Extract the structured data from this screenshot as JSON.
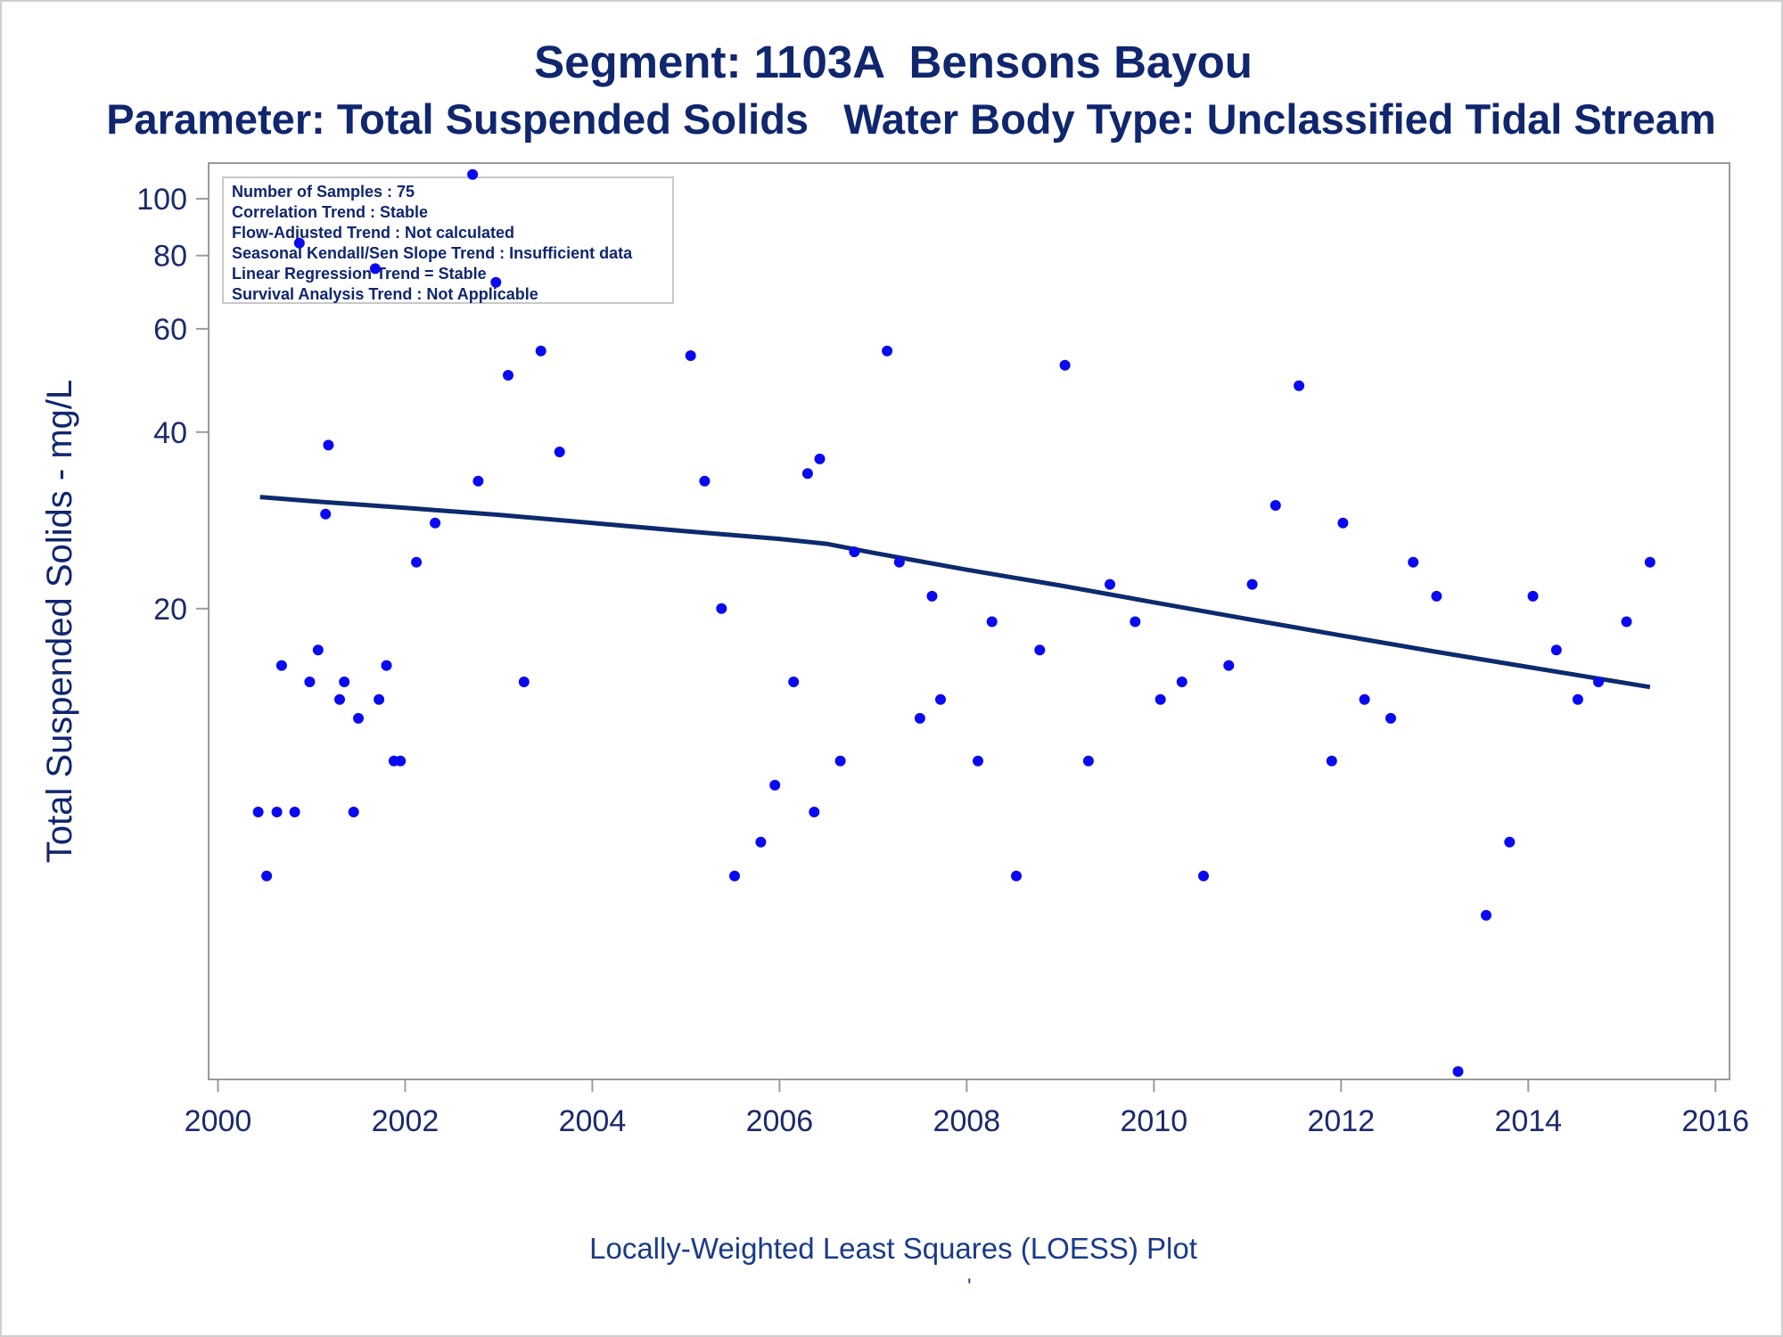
{
  "titles": {
    "line1": "Segment: 1103A  Bensons Bayou",
    "line2": "Parameter: Total Suspended Solids   Water Body Type: Unclassified Tidal Stream"
  },
  "footnote": "Locally-Weighted Least Squares (LOESS) Plot",
  "footnote_mark": "'",
  "info_box": [
    "Number of Samples : 75",
    "Correlation Trend : Stable",
    "Flow-Adjusted Trend : Not calculated",
    "Seasonal Kendall/Sen Slope Trend : Insufficient data",
    "Linear Regression Trend = Stable",
    "Survival Analysis Trend : Not Applicable"
  ],
  "colors": {
    "points": "#0a0af0",
    "loess": "#0d2a6e",
    "axis": "#9a9a9a",
    "text": "#10266e"
  },
  "chart_data": {
    "type": "scatter",
    "xlabel": "",
    "ylabel": "Total Suspended Solids - mg/L",
    "y_scale": "log",
    "xlim": [
      1999.9,
      2016.15
    ],
    "ylim": [
      3.15,
      115
    ],
    "x_ticks": [
      2000,
      2002,
      2004,
      2006,
      2008,
      2010,
      2012,
      2014,
      2016
    ],
    "x_tick_labels": [
      "2000",
      "2002",
      "2004",
      "2006",
      "2008",
      "2010",
      "2012",
      "2014",
      "2016"
    ],
    "y_ticks": [
      20,
      40,
      60,
      80,
      100
    ],
    "y_tick_labels": [
      "20",
      "40",
      "60",
      "80",
      "100"
    ],
    "grid": false,
    "legend": "none",
    "series": [
      {
        "type": "scatter",
        "points": [
          [
            2000.43,
            9
          ],
          [
            2000.52,
            7
          ],
          [
            2000.63,
            9
          ],
          [
            2000.68,
            16
          ],
          [
            2000.82,
            9
          ],
          [
            2000.87,
            84
          ],
          [
            2000.98,
            15
          ],
          [
            2001.07,
            17
          ],
          [
            2001.15,
            29
          ],
          [
            2001.18,
            38
          ],
          [
            2001.3,
            14
          ],
          [
            2001.35,
            15
          ],
          [
            2001.45,
            9
          ],
          [
            2001.5,
            13
          ],
          [
            2001.68,
            76
          ],
          [
            2001.72,
            14
          ],
          [
            2001.8,
            16
          ],
          [
            2001.88,
            11
          ],
          [
            2001.95,
            11
          ],
          [
            2002.12,
            24
          ],
          [
            2002.32,
            28
          ],
          [
            2002.72,
            110
          ],
          [
            2002.78,
            33
          ],
          [
            2002.97,
            72
          ],
          [
            2003.1,
            50
          ],
          [
            2003.27,
            15
          ],
          [
            2003.45,
            55
          ],
          [
            2003.65,
            37
          ],
          [
            2005.05,
            54
          ],
          [
            2005.2,
            33
          ],
          [
            2005.38,
            20
          ],
          [
            2005.52,
            7
          ],
          [
            2005.8,
            8
          ],
          [
            2005.95,
            10
          ],
          [
            2006.15,
            15
          ],
          [
            2006.3,
            34
          ],
          [
            2006.37,
            9
          ],
          [
            2006.43,
            36
          ],
          [
            2006.65,
            11
          ],
          [
            2006.8,
            25
          ],
          [
            2007.15,
            55
          ],
          [
            2007.28,
            24
          ],
          [
            2007.5,
            13
          ],
          [
            2007.63,
            21
          ],
          [
            2007.72,
            14
          ],
          [
            2008.12,
            11
          ],
          [
            2008.27,
            19
          ],
          [
            2008.53,
            7
          ],
          [
            2008.78,
            17
          ],
          [
            2009.05,
            52
          ],
          [
            2009.3,
            11
          ],
          [
            2009.53,
            22
          ],
          [
            2009.8,
            19
          ],
          [
            2010.07,
            14
          ],
          [
            2010.3,
            15
          ],
          [
            2010.53,
            7
          ],
          [
            2010.8,
            16
          ],
          [
            2011.05,
            22
          ],
          [
            2011.3,
            30
          ],
          [
            2011.55,
            48
          ],
          [
            2011.9,
            11
          ],
          [
            2012.02,
            28
          ],
          [
            2012.25,
            14
          ],
          [
            2012.53,
            13
          ],
          [
            2012.77,
            24
          ],
          [
            2013.02,
            21
          ],
          [
            2013.25,
            3.25
          ],
          [
            2013.55,
            6
          ],
          [
            2013.8,
            8
          ],
          [
            2014.05,
            21
          ],
          [
            2014.3,
            17
          ],
          [
            2014.53,
            14
          ],
          [
            2014.75,
            15
          ],
          [
            2015.05,
            19
          ],
          [
            2015.3,
            24
          ]
        ]
      },
      {
        "type": "line",
        "points": [
          [
            2000.45,
            31.0
          ],
          [
            2001.0,
            30.5
          ],
          [
            2002.0,
            29.7
          ],
          [
            2003.0,
            28.9
          ],
          [
            2004.0,
            28.0
          ],
          [
            2005.0,
            27.1
          ],
          [
            2006.0,
            26.3
          ],
          [
            2006.5,
            25.8
          ],
          [
            2007.0,
            24.9
          ],
          [
            2008.0,
            23.3
          ],
          [
            2009.0,
            21.9
          ],
          [
            2010.0,
            20.5
          ],
          [
            2011.0,
            19.2
          ],
          [
            2012.0,
            18.0
          ],
          [
            2013.0,
            16.9
          ],
          [
            2014.0,
            15.9
          ],
          [
            2015.3,
            14.7
          ]
        ]
      }
    ]
  }
}
